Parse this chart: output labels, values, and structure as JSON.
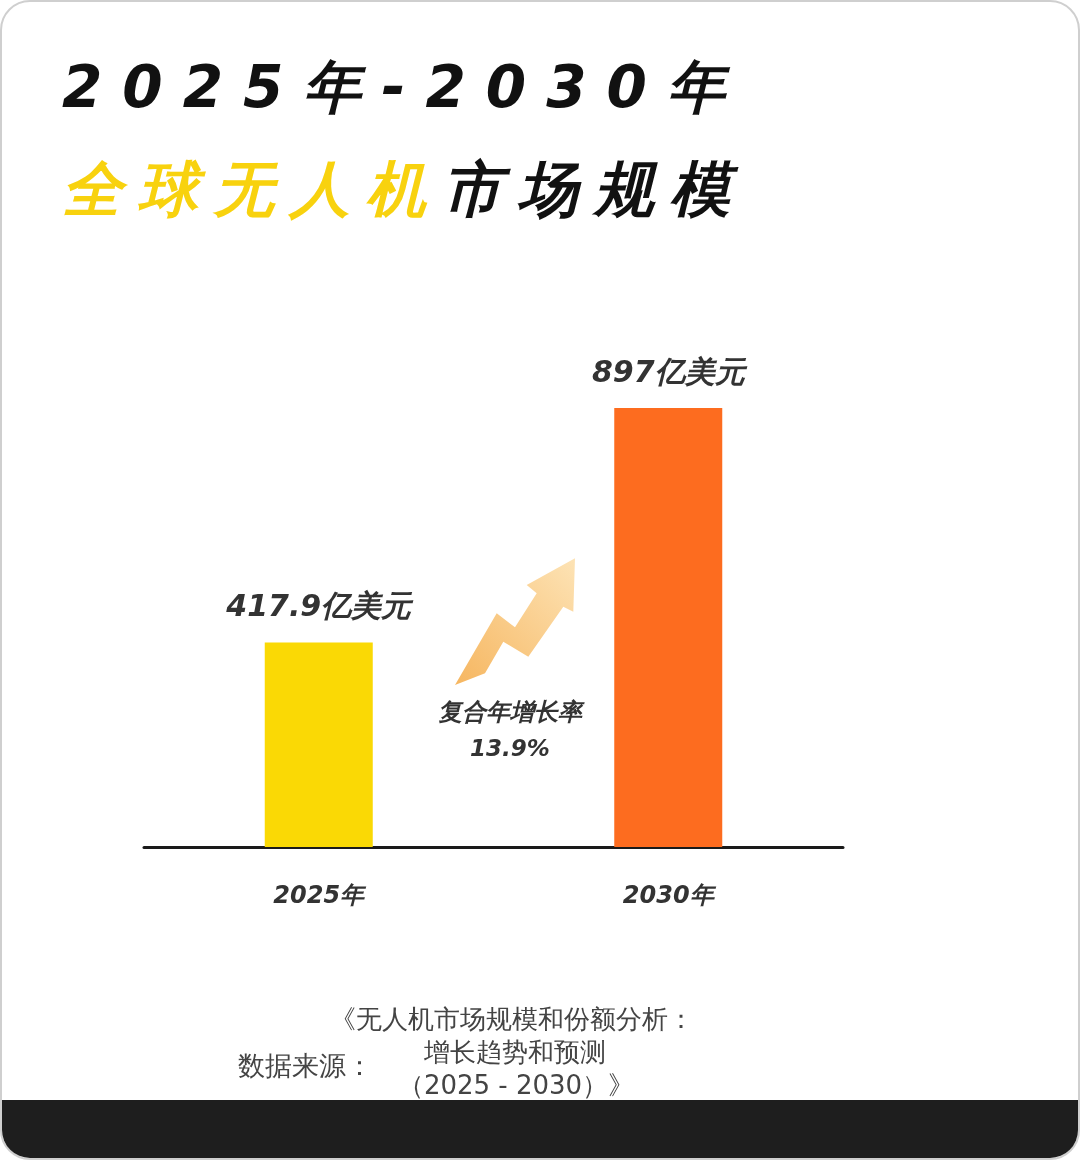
{
  "chart_data": {
    "type": "bar",
    "title": "2025年-2030年",
    "subtitle": "全球无人机市场规模",
    "categories": [
      "2025年",
      "2030年"
    ],
    "values": [
      417.9,
      897
    ],
    "colors": [
      "#fad905",
      "#fd6c1f"
    ],
    "value_labels": [
      "417.9亿美元",
      "897亿美元"
    ],
    "annotations": [
      "复合年增长率",
      "13.9%",
      "数据来源：",
      "《无人机市场规模和份额分析：",
      "增长趋势和预测",
      "（2025 - 2030）》"
    ]
  }
}
